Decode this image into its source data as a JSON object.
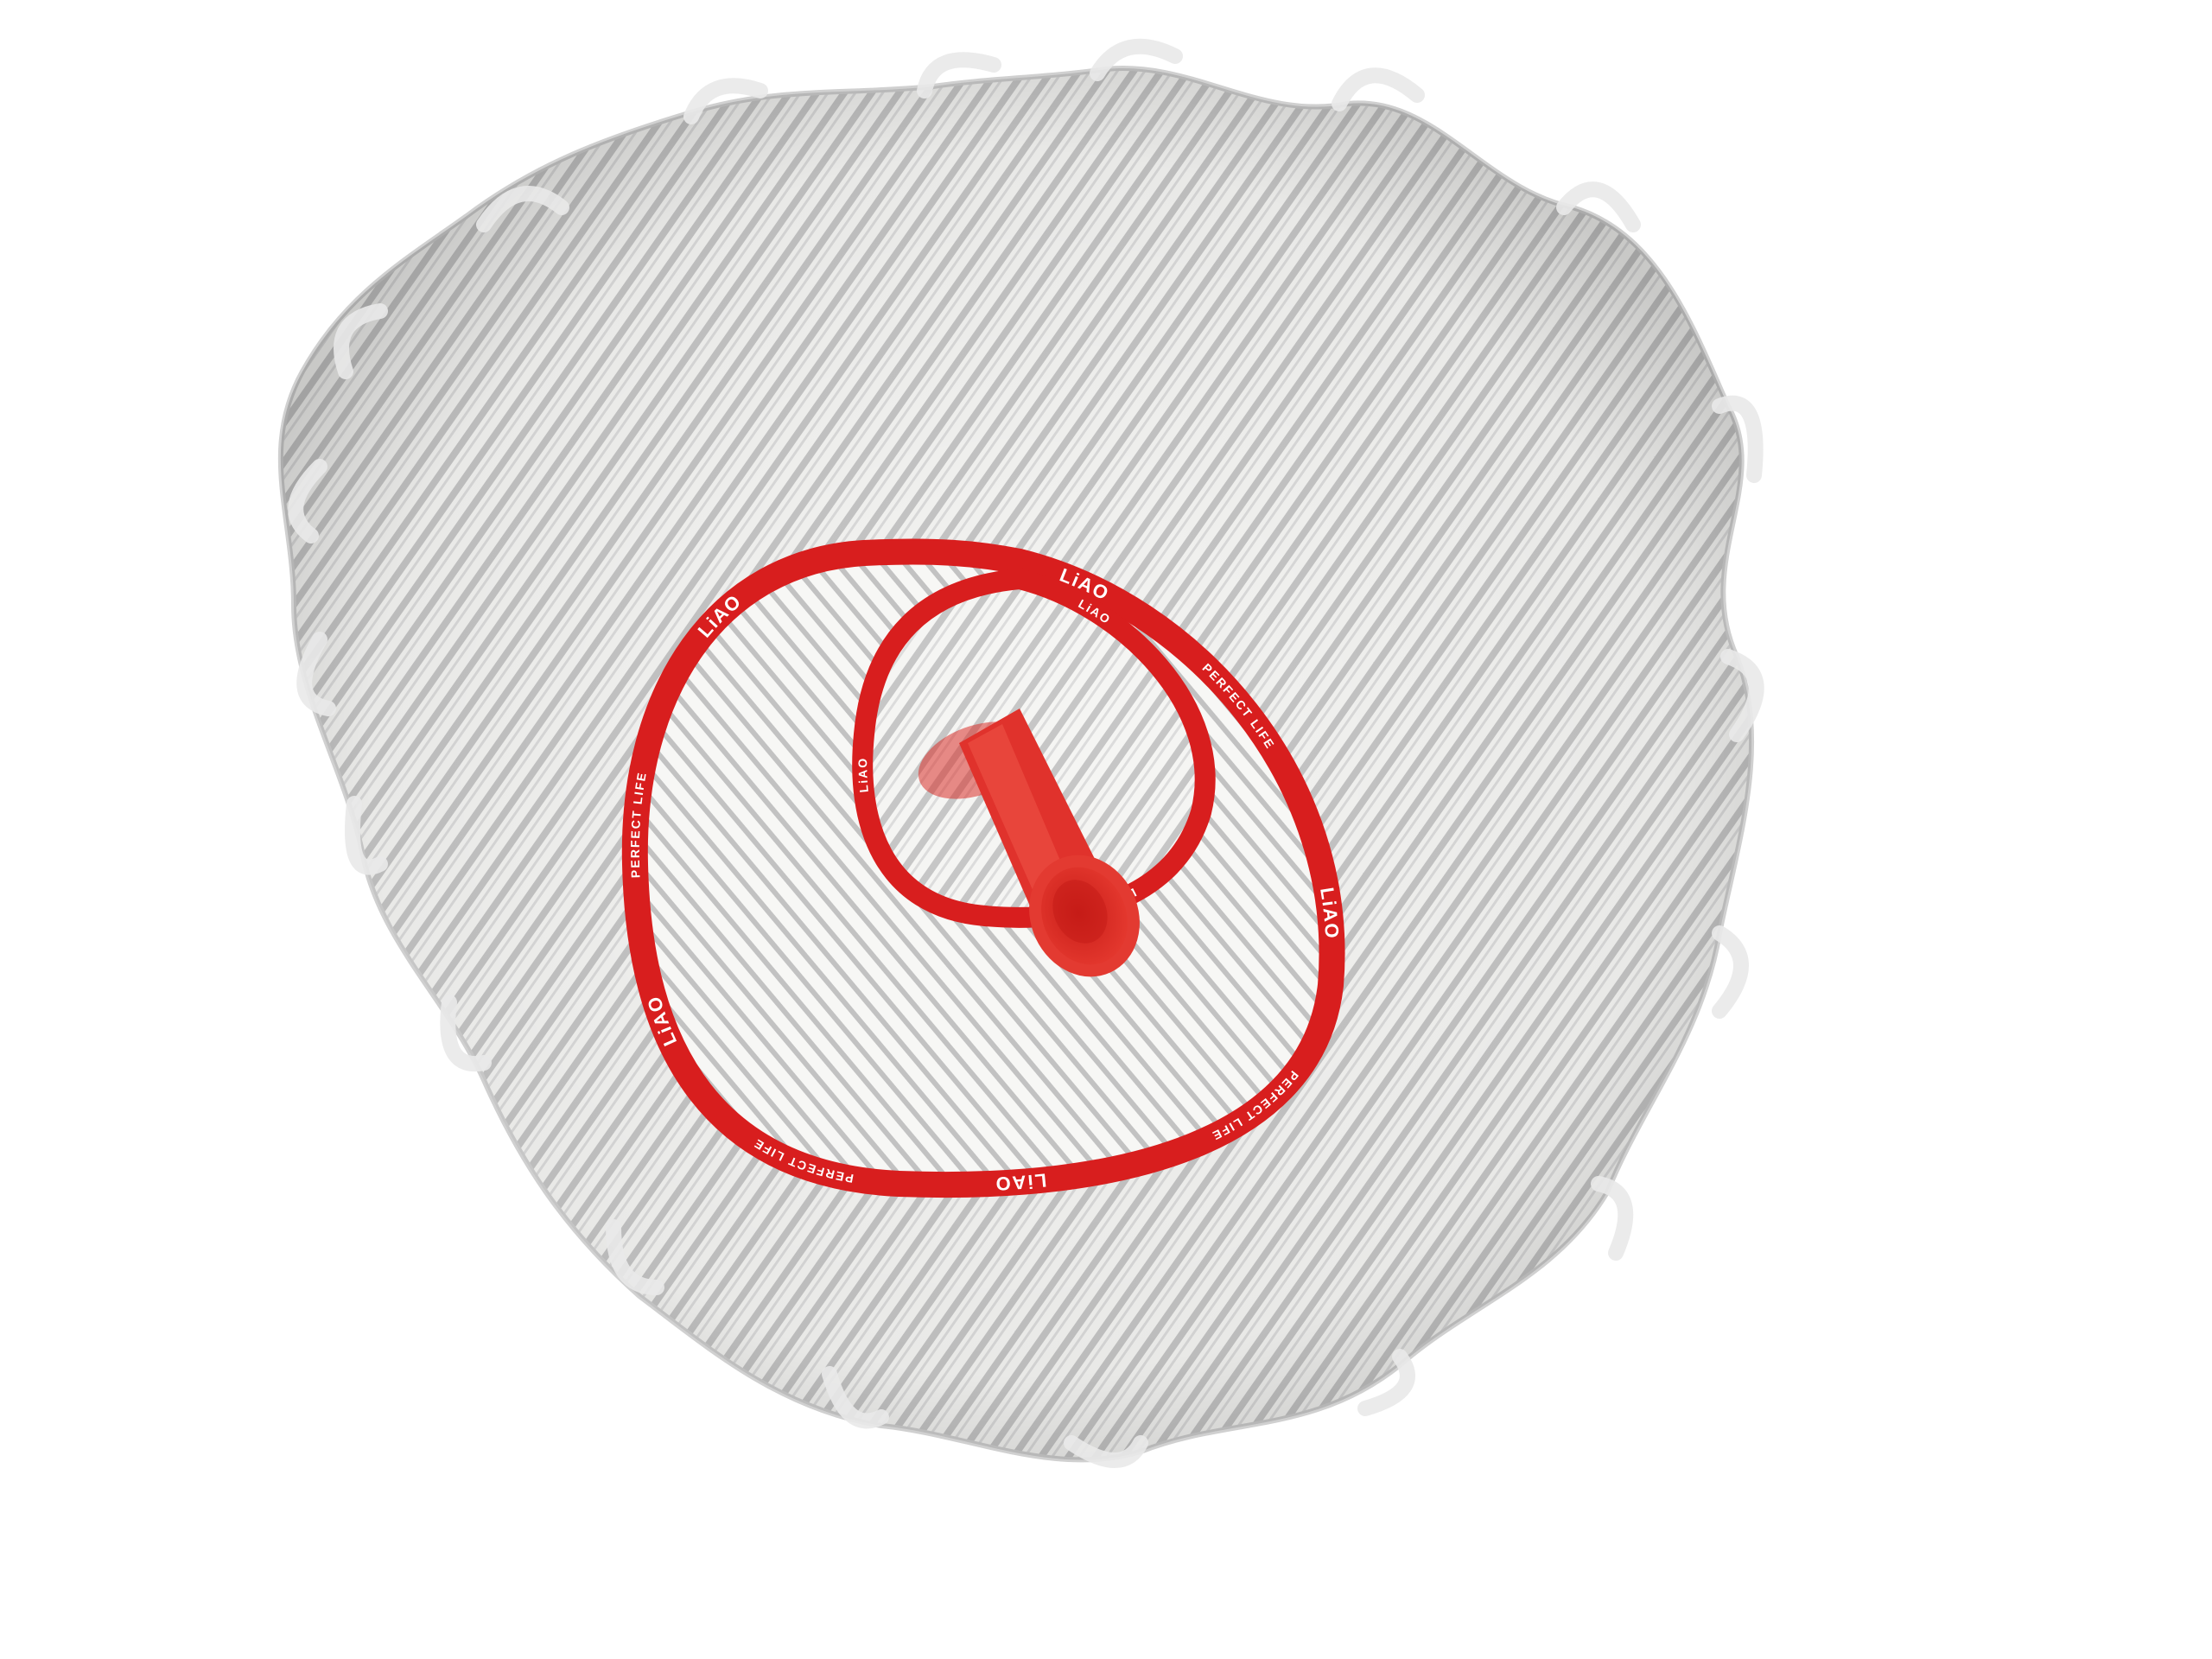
{
  "product": {
    "brand_mark": "LiAO",
    "band_slogan": "PERFECT LIFE"
  },
  "colors": {
    "background": "#ffffff",
    "band_red": "#d81e1e",
    "socket_red": "#e0322c",
    "fiber_white": "#f4f4f2",
    "fiber_grey": "#b7b7b7"
  }
}
